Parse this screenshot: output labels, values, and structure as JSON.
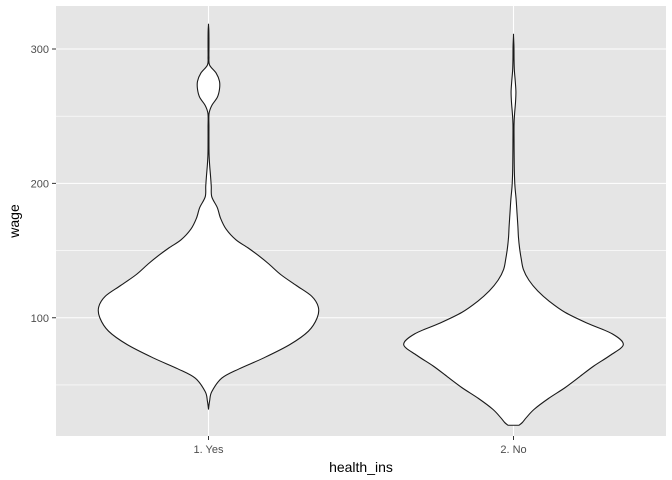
{
  "chart_data": {
    "type": "violin",
    "xlabel": "health_ins",
    "ylabel": "wage",
    "categories": [
      "1. Yes",
      "2. No"
    ],
    "y_ticks": [
      100,
      200,
      300
    ],
    "ylim": [
      12,
      332
    ],
    "grid": true,
    "style": {
      "panel_background": "#e5e5e5",
      "grid_color": "#ffffff",
      "violin_fill": "#ffffff",
      "violin_stroke": "#1a1a1a"
    },
    "series": [
      {
        "category": "1. Yes",
        "min": 32,
        "max": 318,
        "density_profile": [
          [
            32,
            0.0
          ],
          [
            38,
            0.01
          ],
          [
            45,
            0.03
          ],
          [
            55,
            0.12
          ],
          [
            62,
            0.28
          ],
          [
            70,
            0.5
          ],
          [
            80,
            0.74
          ],
          [
            90,
            0.91
          ],
          [
            100,
            0.99
          ],
          [
            108,
            1.0
          ],
          [
            116,
            0.94
          ],
          [
            124,
            0.8
          ],
          [
            132,
            0.66
          ],
          [
            140,
            0.55
          ],
          [
            146,
            0.46
          ],
          [
            152,
            0.36
          ],
          [
            158,
            0.25
          ],
          [
            166,
            0.16
          ],
          [
            174,
            0.11
          ],
          [
            182,
            0.08
          ],
          [
            190,
            0.03
          ],
          [
            198,
            0.025
          ],
          [
            206,
            0.018
          ],
          [
            214,
            0.01
          ],
          [
            222,
            0.005
          ],
          [
            232,
            0.004
          ],
          [
            242,
            0.004
          ],
          [
            252,
            0.005
          ],
          [
            258,
            0.03
          ],
          [
            264,
            0.08
          ],
          [
            270,
            0.1
          ],
          [
            276,
            0.1
          ],
          [
            282,
            0.07
          ],
          [
            288,
            0.01
          ],
          [
            294,
            0.004
          ],
          [
            300,
            0.004
          ],
          [
            308,
            0.004
          ],
          [
            314,
            0.003
          ],
          [
            318,
            0.0
          ]
        ]
      },
      {
        "category": "2. No",
        "min": 20,
        "max": 310,
        "density_profile": [
          [
            20,
            0.05
          ],
          [
            22,
            0.08
          ],
          [
            26,
            0.12
          ],
          [
            32,
            0.19
          ],
          [
            40,
            0.32
          ],
          [
            48,
            0.47
          ],
          [
            56,
            0.6
          ],
          [
            64,
            0.73
          ],
          [
            72,
            0.88
          ],
          [
            80,
            1.0
          ],
          [
            88,
            0.9
          ],
          [
            96,
            0.67
          ],
          [
            104,
            0.47
          ],
          [
            112,
            0.33
          ],
          [
            120,
            0.22
          ],
          [
            128,
            0.14
          ],
          [
            136,
            0.09
          ],
          [
            144,
            0.07
          ],
          [
            152,
            0.055
          ],
          [
            160,
            0.045
          ],
          [
            168,
            0.04
          ],
          [
            178,
            0.032
          ],
          [
            188,
            0.024
          ],
          [
            198,
            0.013
          ],
          [
            208,
            0.008
          ],
          [
            220,
            0.006
          ],
          [
            232,
            0.005
          ],
          [
            244,
            0.005
          ],
          [
            252,
            0.01
          ],
          [
            260,
            0.018
          ],
          [
            268,
            0.022
          ],
          [
            276,
            0.016
          ],
          [
            284,
            0.008
          ],
          [
            292,
            0.005
          ],
          [
            302,
            0.004
          ],
          [
            310,
            0.0
          ]
        ]
      }
    ]
  }
}
